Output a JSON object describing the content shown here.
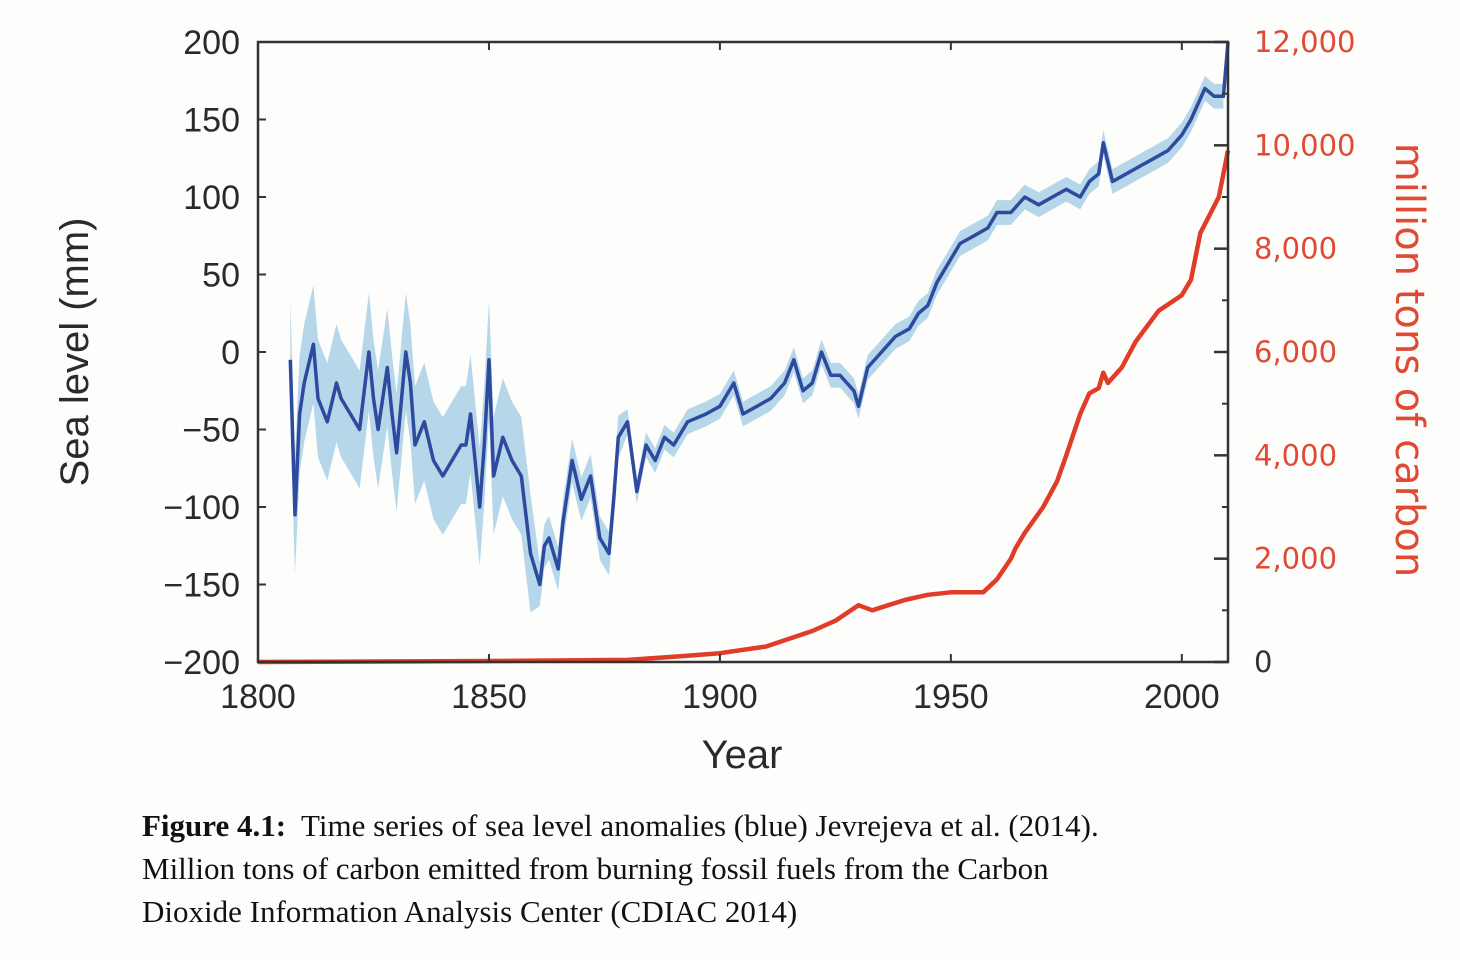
{
  "chart_data": {
    "type": "line",
    "title": "",
    "xlabel": "Year",
    "ylabel": "Sea level (mm)",
    "y2label": "million tons of carbon",
    "xlim": [
      1800,
      2010
    ],
    "ylim": [
      -200,
      200
    ],
    "y2lim": [
      0,
      12000
    ],
    "grid": false,
    "legend": "none",
    "x_ticks": [
      "1800",
      "1850",
      "1900",
      "1950",
      "2000"
    ],
    "x_tick_values": [
      1800,
      1850,
      1900,
      1950,
      2000
    ],
    "y_ticks": [
      "200",
      "150",
      "100",
      "50",
      "0",
      "−50",
      "−100",
      "−150",
      "−200"
    ],
    "y_tick_values": [
      200,
      150,
      100,
      50,
      0,
      -50,
      -100,
      -150,
      -200
    ],
    "y2_ticks": [
      "12,000",
      "10,000",
      "8,000",
      "6,000",
      "4,000",
      "2,000",
      "0"
    ],
    "y2_tick_values": [
      12000,
      10000,
      8000,
      6000,
      4000,
      2000,
      0
    ],
    "colors": {
      "sea_level": "#2e4a9e",
      "sea_level_band": "#a9cfe6",
      "carbon": "#e03c28",
      "axis": "#333333",
      "y2_labels": "#e04a35",
      "y2_zero_label": "#333333"
    },
    "series": [
      {
        "name": "Sea level anomaly (mm)",
        "axis": "left",
        "x": [
          1807,
          1808,
          1809,
          1810,
          1812,
          1813,
          1815,
          1817,
          1818,
          1820,
          1822,
          1824,
          1825,
          1826,
          1828,
          1829,
          1830,
          1832,
          1833,
          1834,
          1836,
          1838,
          1840,
          1842,
          1844,
          1845,
          1846,
          1848,
          1849,
          1850,
          1851,
          1853,
          1855,
          1857,
          1859,
          1861,
          1862,
          1863,
          1865,
          1866,
          1868,
          1870,
          1872,
          1874,
          1876,
          1877,
          1878,
          1880,
          1882,
          1884,
          1886,
          1888,
          1890,
          1893,
          1897,
          1900,
          1903,
          1905,
          1908,
          1911,
          1914,
          1916,
          1918,
          1920,
          1922,
          1924,
          1926,
          1929,
          1930,
          1932,
          1935,
          1938,
          1941,
          1943,
          1945,
          1947,
          1950,
          1952,
          1955,
          1958,
          1960,
          1963,
          1966,
          1969,
          1972,
          1975,
          1978,
          1980,
          1982,
          1983,
          1985,
          1988,
          1991,
          1994,
          1997,
          2000,
          2002,
          2005,
          2007,
          2009,
          2010
        ],
        "values": [
          -5,
          -105,
          -40,
          -20,
          5,
          -30,
          -45,
          -20,
          -30,
          -40,
          -50,
          0,
          -30,
          -50,
          -10,
          -40,
          -65,
          0,
          -20,
          -60,
          -45,
          -70,
          -80,
          -70,
          -60,
          -60,
          -40,
          -100,
          -60,
          -5,
          -80,
          -55,
          -70,
          -80,
          -130,
          -150,
          -125,
          -120,
          -140,
          -110,
          -70,
          -95,
          -80,
          -120,
          -130,
          -95,
          -55,
          -45,
          -90,
          -60,
          -70,
          -55,
          -60,
          -45,
          -40,
          -35,
          -20,
          -40,
          -35,
          -30,
          -20,
          -5,
          -25,
          -20,
          0,
          -15,
          -15,
          -25,
          -35,
          -10,
          0,
          10,
          15,
          25,
          30,
          45,
          60,
          70,
          75,
          80,
          90,
          90,
          100,
          95,
          100,
          105,
          100,
          110,
          115,
          135,
          110,
          115,
          120,
          125,
          130,
          140,
          150,
          170,
          165,
          165,
          200
        ]
      },
      {
        "name": "Carbon emitted (million tons)",
        "axis": "right",
        "x": [
          1800,
          1850,
          1880,
          1890,
          1900,
          1910,
          1920,
          1925,
          1930,
          1933,
          1940,
          1945,
          1950,
          1957,
          1960,
          1963,
          1964,
          1966,
          1970,
          1973,
          1975,
          1978,
          1980,
          1982,
          1983,
          1984,
          1987,
          1990,
          1995,
          2000,
          2002,
          2004,
          2008,
          2010
        ],
        "values": [
          0,
          20,
          40,
          100,
          170,
          300,
          600,
          800,
          1100,
          1000,
          1200,
          1300,
          1350,
          1350,
          1600,
          2000,
          2200,
          2500,
          3000,
          3500,
          4000,
          4800,
          5200,
          5300,
          5600,
          5400,
          5700,
          6200,
          6800,
          7100,
          7400,
          8300,
          9000,
          9900
        ]
      }
    ]
  },
  "caption": {
    "label": "Figure 4.1:",
    "line1": "Time series of sea level anomalies (blue) Jevrejeva et al. (2014).",
    "line2": "Million tons of carbon emitted from burning fossil fuels from the Carbon",
    "line3": "Dioxide Information Analysis Center (CDIAC 2014)"
  }
}
